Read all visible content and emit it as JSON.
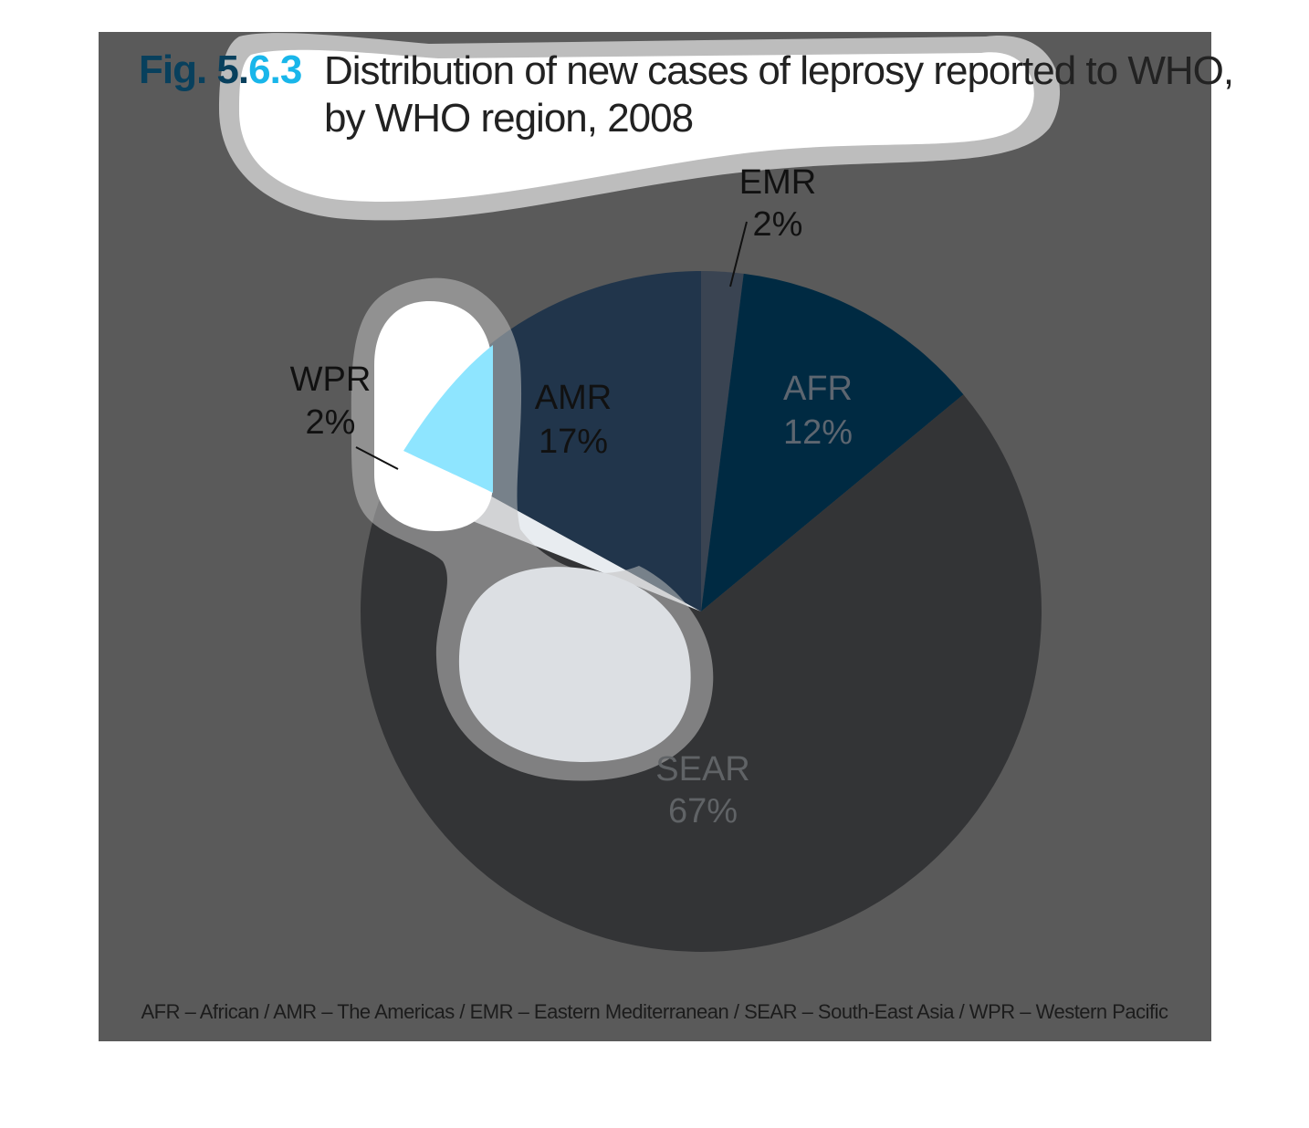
{
  "figure": {
    "number_prefix": "Fig. 5.",
    "number_suffix": "6.3",
    "title_line1": "Distribution of new cases of leprosy reported to WHO,",
    "title_line2": "by WHO region, 2008",
    "footnote": "AFR – African / AMR – The Americas / EMR – Eastern Mediterranean / SEAR – South-East Asia / WPR – Western Pacific"
  },
  "colors": {
    "background": "#5a5a5a",
    "accent": "#19b6ea",
    "title_number": "#08405d"
  },
  "chart_data": {
    "type": "pie",
    "title": "Distribution of new cases of leprosy reported to WHO, by WHO region, 2008",
    "start": "12 o'clock, clockwise",
    "slices": [
      {
        "label": "EMR",
        "value": 2,
        "value_label": "2%",
        "color": "#3a4452",
        "text_color": "#111111",
        "leader": true
      },
      {
        "label": "AFR",
        "value": 12,
        "value_label": "12%",
        "color": "#002a42",
        "text_color": "#5d6670",
        "leader": false
      },
      {
        "label": "SEAR",
        "value": 67,
        "value_label": "67%",
        "color": "#333436",
        "text_color": "#606366",
        "leader": false
      },
      {
        "label": "WPR",
        "value": 2,
        "value_label": "2%",
        "color": "#e8ecf0",
        "text_color": "#111111",
        "leader": true
      },
      {
        "label": "AMR",
        "value": 17,
        "value_label": "17%",
        "color": "#21354b",
        "text_color": "#111111",
        "leader": false
      }
    ]
  }
}
